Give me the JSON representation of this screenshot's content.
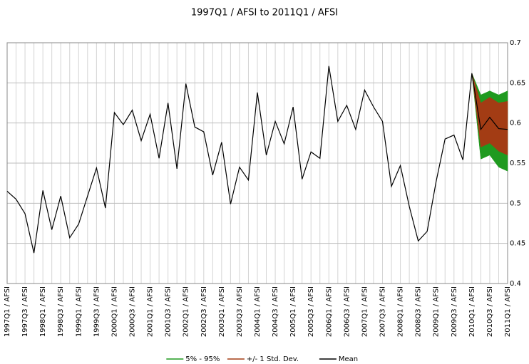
{
  "chart_data": {
    "type": "line",
    "title": "1997Q1 / AFSI to 2011Q1 / AFSI",
    "categories": [
      "1997Q1 / AFSI",
      null,
      "1997Q3 / AFSI",
      null,
      "1998Q1 / AFSI",
      null,
      "1998Q3 / AFSI",
      null,
      "1999Q1 / AFSI",
      null,
      "1999Q3 / AFSI",
      null,
      "2000Q1 / AFSI",
      null,
      "2000Q3 / AFSI",
      null,
      "2001Q1 / AFSI",
      null,
      "2001Q3 / AFSI",
      null,
      "2002Q1 / AFSI",
      null,
      "2002Q3 / AFSI",
      null,
      "2003Q1 / AFSI",
      null,
      "2003Q3 / AFSI",
      null,
      "2004Q1 / AFSI",
      null,
      "2004Q3 / AFSI",
      null,
      "2005Q1 / AFSI",
      null,
      "2005Q3 / AFSI",
      null,
      "2006Q1 / AFSI",
      null,
      "2006Q3 / AFSI",
      null,
      "2007Q1 / AFSI",
      null,
      "2007Q3 / AFSI",
      null,
      "2008Q1 / AFSI",
      null,
      "2008Q3 / AFSI",
      null,
      "2009Q1 / AFSI",
      null,
      "2009Q3 / AFSI",
      null,
      "2010Q1 / AFSI",
      null,
      "2010Q3 / AFSI",
      null,
      "2011Q1 / AFSI"
    ],
    "series": [
      {
        "name": "5% - 95%",
        "color": "#1f9a1f",
        "lower": [
          null,
          null,
          null,
          null,
          null,
          null,
          null,
          null,
          null,
          null,
          null,
          null,
          null,
          null,
          null,
          null,
          null,
          null,
          null,
          null,
          null,
          null,
          null,
          null,
          null,
          null,
          null,
          null,
          null,
          null,
          null,
          null,
          null,
          null,
          null,
          null,
          null,
          null,
          null,
          null,
          null,
          null,
          null,
          null,
          null,
          null,
          null,
          null,
          null,
          null,
          null,
          null,
          0.662,
          0.555,
          0.56,
          0.545,
          0.54
        ],
        "upper": [
          null,
          null,
          null,
          null,
          null,
          null,
          null,
          null,
          null,
          null,
          null,
          null,
          null,
          null,
          null,
          null,
          null,
          null,
          null,
          null,
          null,
          null,
          null,
          null,
          null,
          null,
          null,
          null,
          null,
          null,
          null,
          null,
          null,
          null,
          null,
          null,
          null,
          null,
          null,
          null,
          null,
          null,
          null,
          null,
          null,
          null,
          null,
          null,
          null,
          null,
          null,
          null,
          0.662,
          0.635,
          0.64,
          0.635,
          0.64
        ]
      },
      {
        "name": "+/- 1 Std. Dev.",
        "color": "#a33c14",
        "lower": [
          null,
          null,
          null,
          null,
          null,
          null,
          null,
          null,
          null,
          null,
          null,
          null,
          null,
          null,
          null,
          null,
          null,
          null,
          null,
          null,
          null,
          null,
          null,
          null,
          null,
          null,
          null,
          null,
          null,
          null,
          null,
          null,
          null,
          null,
          null,
          null,
          null,
          null,
          null,
          null,
          null,
          null,
          null,
          null,
          null,
          null,
          null,
          null,
          null,
          null,
          null,
          null,
          0.662,
          0.57,
          0.575,
          0.565,
          0.56
        ],
        "upper": [
          null,
          null,
          null,
          null,
          null,
          null,
          null,
          null,
          null,
          null,
          null,
          null,
          null,
          null,
          null,
          null,
          null,
          null,
          null,
          null,
          null,
          null,
          null,
          null,
          null,
          null,
          null,
          null,
          null,
          null,
          null,
          null,
          null,
          null,
          null,
          null,
          null,
          null,
          null,
          null,
          null,
          null,
          null,
          null,
          null,
          null,
          null,
          null,
          null,
          null,
          null,
          null,
          0.662,
          0.625,
          0.632,
          0.625,
          0.627
        ]
      },
      {
        "name": "Mean",
        "color": "#000000",
        "values": [
          0.515,
          0.505,
          0.487,
          0.438,
          0.516,
          0.467,
          0.509,
          0.457,
          0.474,
          0.509,
          0.544,
          0.494,
          0.613,
          0.598,
          0.616,
          0.578,
          0.611,
          0.556,
          0.625,
          0.543,
          0.649,
          0.595,
          0.589,
          0.535,
          0.576,
          0.499,
          0.545,
          0.529,
          0.638,
          0.56,
          0.602,
          0.574,
          0.62,
          0.53,
          0.564,
          0.556,
          0.671,
          0.602,
          0.622,
          0.592,
          0.641,
          0.62,
          0.602,
          0.521,
          0.547,
          0.496,
          0.453,
          0.465,
          0.527,
          0.58,
          0.585,
          0.554,
          0.662,
          0.592,
          0.607,
          0.593,
          0.592
        ]
      }
    ],
    "ylim": [
      0.4,
      0.7
    ],
    "yticks": [
      0.4,
      0.45,
      0.5,
      0.55,
      0.6,
      0.65,
      0.7
    ],
    "grid": true,
    "legend": "bottom"
  }
}
